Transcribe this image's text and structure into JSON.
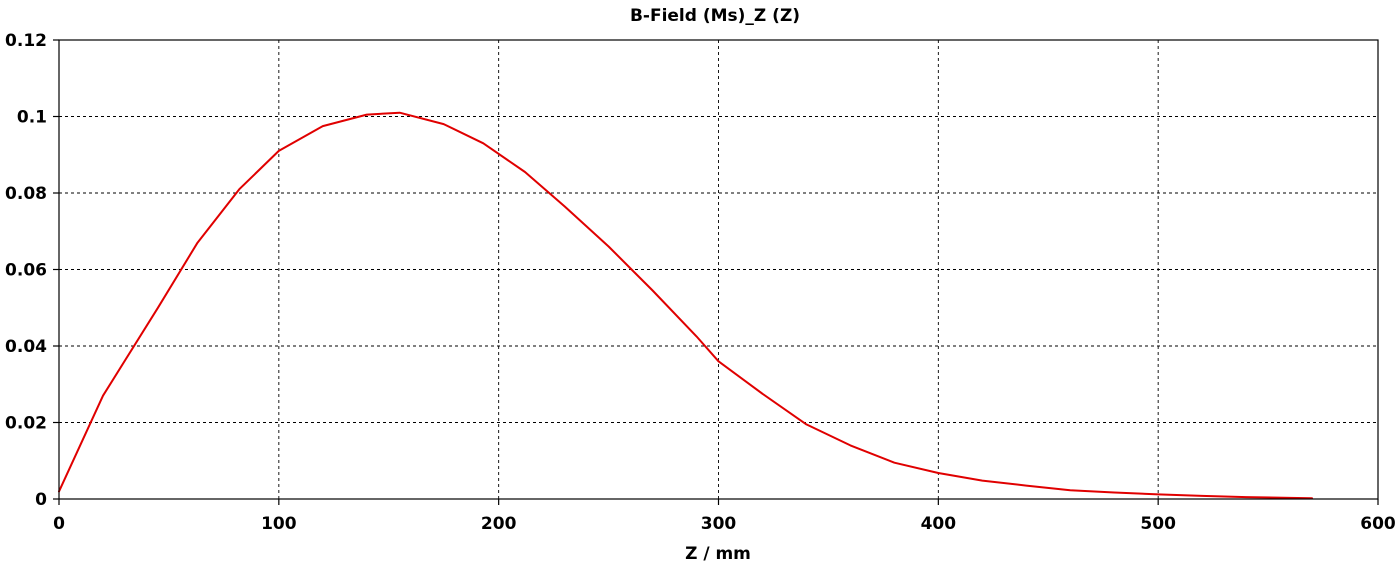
{
  "chart_data": {
    "type": "line",
    "title": "B-Field (Ms)_Z (Z)",
    "xlabel": "Z / mm",
    "ylabel": "",
    "xlim": [
      0,
      600
    ],
    "ylim": [
      0,
      0.12
    ],
    "x_ticks": [
      "0",
      "100",
      "200",
      "300",
      "400",
      "500",
      "600"
    ],
    "y_ticks": [
      "0",
      "0.02",
      "0.04",
      "0.06",
      "0.08",
      "0.1",
      "0.12"
    ],
    "grid": true,
    "legend": "none",
    "series": [
      {
        "color": "#e00000",
        "x": [
          0,
          20,
          45,
          63,
          82,
          100,
          120,
          140,
          155,
          175,
          193,
          212,
          230,
          250,
          270,
          290,
          300,
          320,
          340,
          360,
          380,
          400,
          420,
          440,
          460,
          480,
          500,
          520,
          540,
          560,
          570
        ],
        "y": [
          0.002,
          0.027,
          0.05,
          0.067,
          0.081,
          0.091,
          0.0975,
          0.1005,
          0.101,
          0.098,
          0.093,
          0.0855,
          0.0765,
          0.066,
          0.0545,
          0.0425,
          0.036,
          0.0275,
          0.0195,
          0.014,
          0.0095,
          0.0068,
          0.0048,
          0.0035,
          0.0023,
          0.0017,
          0.0012,
          0.0008,
          0.0005,
          0.0003,
          0.0002
        ]
      }
    ]
  }
}
